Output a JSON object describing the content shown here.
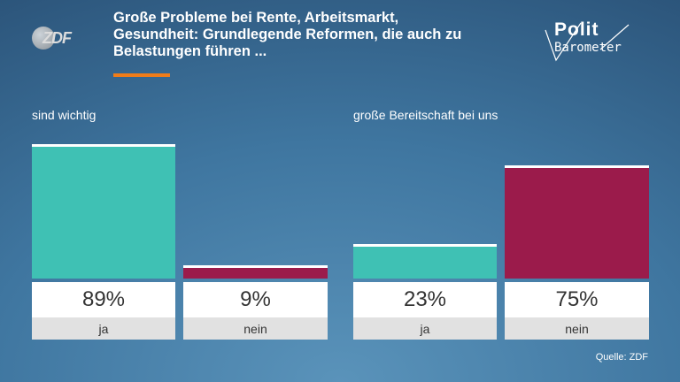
{
  "header": {
    "logo_text": "ZDF",
    "headline_lines": [
      "Große Probleme bei Rente, Arbeitsmarkt,",
      "Gesundheit: Grundlegende Reformen, die auch zu",
      "Belastungen führen ..."
    ],
    "brand_top": "Polit",
    "brand_bottom": "Barometer",
    "accent_color": "#f07c18"
  },
  "chart_data": [
    {
      "type": "bar",
      "title": "sind wichtig",
      "categories": [
        "ja",
        "nein"
      ],
      "values": [
        89,
        9
      ],
      "value_labels": [
        "89%",
        "9%"
      ],
      "colors": [
        "#3fc1b4",
        "#9b1b4b"
      ],
      "ylim": [
        0,
        100
      ]
    },
    {
      "type": "bar",
      "title": "große Bereitschaft bei uns",
      "categories": [
        "ja",
        "nein"
      ],
      "values": [
        23,
        75
      ],
      "value_labels": [
        "23%",
        "75%"
      ],
      "colors": [
        "#3fc1b4",
        "#9b1b4b"
      ],
      "ylim": [
        0,
        100
      ]
    }
  ],
  "footer": {
    "source": "Quelle: ZDF"
  }
}
